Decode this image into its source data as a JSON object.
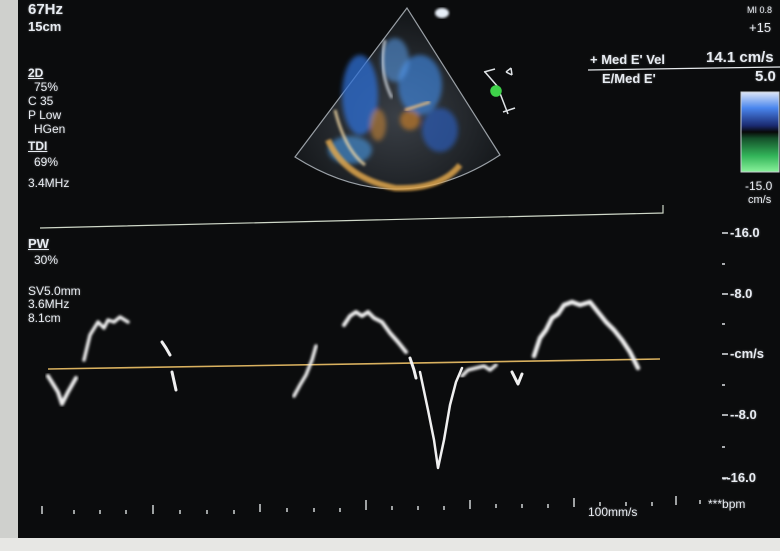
{
  "acquisition": {
    "frame_rate": "67Hz",
    "depth": "15cm",
    "mode_2d": "2D",
    "gain_2d": "75%",
    "compression": "C 35",
    "power": "P Low",
    "harmonic": "HGen",
    "mode_tdi": "TDI",
    "gain_tdi": "69%",
    "freq_tdi": "3.4MHz"
  },
  "pw": {
    "label": "PW",
    "gain": "30%",
    "sample_volume": "SV5.0mm",
    "frequency": "3.6MHz",
    "sample_depth": "8.1cm"
  },
  "indices": {
    "mi": "MI 0.8",
    "tis": "+15"
  },
  "measurements": {
    "med_e_vel_label": "+ Med E' Vel",
    "med_e_vel_value": "14.1 cm/s",
    "e_med_e_label": "E/Med E'",
    "e_med_e_value": "5.0"
  },
  "color_scale": {
    "top": "15.0",
    "bottom": "-15.0",
    "unit": "cm/s",
    "colors": [
      "#c8d7f2",
      "#3a73e0",
      "#1a2b78",
      "#0a0a0a",
      "#1d6e3a",
      "#34c060",
      "#7bf08e"
    ]
  },
  "velocity_scale": {
    "unit": "cm/s",
    "ticks": [
      "16.0",
      "8.0",
      "-8.0",
      "-16.0"
    ]
  },
  "sweep": {
    "speed": "100mm/s",
    "hr_unit": "bpm"
  }
}
